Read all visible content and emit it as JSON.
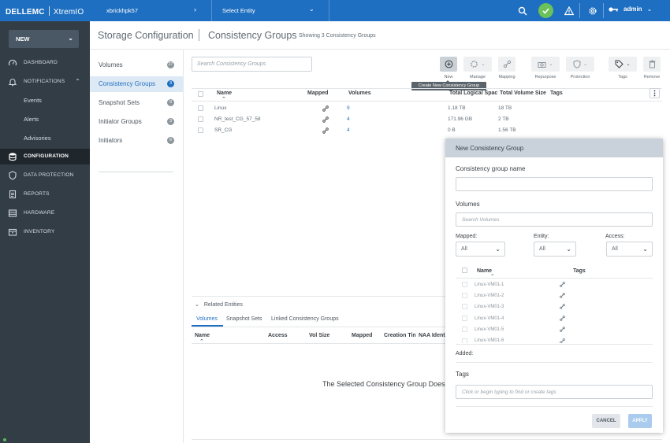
{
  "topbar": {
    "brand_left": "DELLEMC",
    "brand_right": "XtremIO",
    "cluster": "xbrickhpk57",
    "entity_select": "Select Entity",
    "user": "admin",
    "icons": [
      "search-icon",
      "status-ok-icon",
      "alert-icon",
      "settings-icon",
      "key-icon"
    ]
  },
  "leftnav": {
    "new_label": "NEW",
    "items": [
      {
        "label": "DASHBOARD",
        "icon": "gauge-icon"
      },
      {
        "label": "NOTIFICATIONS",
        "icon": "bell-icon"
      },
      {
        "label": "Events"
      },
      {
        "label": "Alerts"
      },
      {
        "label": "Advisories"
      },
      {
        "label": "CONFIGURATION",
        "icon": "database-icon"
      },
      {
        "label": "DATA PROTECTION",
        "icon": "shield-icon"
      },
      {
        "label": "REPORTS",
        "icon": "report-icon"
      },
      {
        "label": "HARDWARE",
        "icon": "hardware-icon"
      },
      {
        "label": "INVENTORY",
        "icon": "inventory-icon"
      }
    ]
  },
  "page": {
    "title": "Storage Configuration",
    "section": "Consistency Groups",
    "subtitle": "Showing 3 Consistency Groups"
  },
  "categories": [
    {
      "label": "Volumes",
      "count": "27"
    },
    {
      "label": "Consistency Groups",
      "count": "3"
    },
    {
      "label": "Snapshot Sets",
      "count": "0"
    },
    {
      "label": "Initiator Groups",
      "count": "3"
    },
    {
      "label": "Initiators",
      "count": "6"
    }
  ],
  "search": {
    "placeholder": "Search Consistency Groups"
  },
  "toolbar": {
    "new": "New",
    "manage": "Manage",
    "mapping": "Mapping",
    "repurpose": "Repurpose",
    "protection": "Protection",
    "tags": "Tags",
    "remove": "Remove",
    "tooltip": "Create New Consistency Group"
  },
  "grid": {
    "columns": [
      "Name",
      "Mapped",
      "Volumes",
      "Total Logical Spac",
      "Total Volume Size",
      "Tags"
    ],
    "rows": [
      {
        "name": "Linux",
        "volumes": "9",
        "logical": "1.18 TB",
        "size": "18 TB"
      },
      {
        "name": "NR_test_CG_57_58",
        "volumes": "4",
        "logical": "171.96 GB",
        "size": "2 TB"
      },
      {
        "name": "SR_CG",
        "volumes": "4",
        "logical": "0 B",
        "size": "1.56 TB"
      }
    ]
  },
  "related": {
    "title": "Related Entities",
    "tabs": [
      "Volumes",
      "Snapshot Sets",
      "Linked Consistency Groups"
    ],
    "columns": [
      "Name",
      "Access",
      "Vol Size",
      "Mapped",
      "Creation Tin",
      "NAA Identi"
    ],
    "empty_text": "The Selected Consistency Group Does"
  },
  "dialog": {
    "title": "New Consistency Group",
    "name_label": "Consistency group name",
    "name_value": "",
    "volumes_label": "Volumes",
    "volumes_placeholder": "Search Volumes",
    "mapped_label": "Mapped:",
    "mapped_value": "All",
    "entity_label": "Entity:",
    "entity_value": "All",
    "access_label": "Access:",
    "access_value": "All",
    "vol_col_name": "Name",
    "vol_col_tags": "Tags",
    "volumes": [
      "Linux-VM01-1",
      "Linux-VM01-2",
      "Linux-VM01-3",
      "Linux-VM01-4",
      "Linux-VM01-5",
      "Linux-VM01-6"
    ],
    "added_label": "Added:",
    "tags_label": "Tags",
    "tags_placeholder": "Click or begin typing to find or create tags",
    "cancel": "CANCEL",
    "apply": "APPLY"
  },
  "colors": {
    "brand_blue": "#1e6fc1",
    "nav_bg": "#333d46",
    "status_green": "#6ac259",
    "apply_disabled": "#a9cbed"
  }
}
